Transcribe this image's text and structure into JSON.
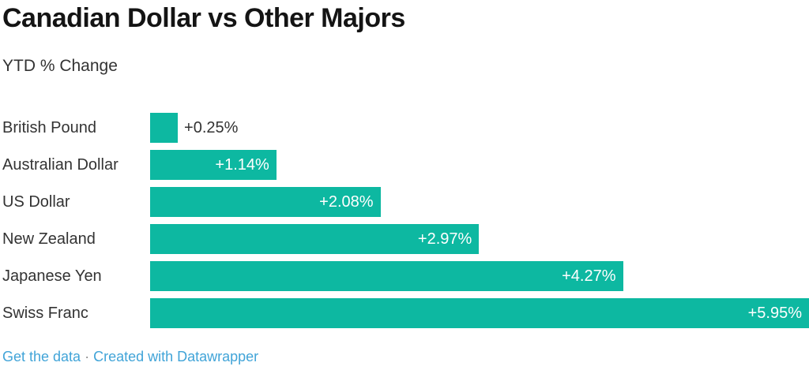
{
  "title": "Canadian Dollar vs Other Majors",
  "subtitle": "YTD % Change",
  "footer": {
    "get_data_label": "Get the data",
    "separator": "·",
    "credit_label": "Created with Datawrapper"
  },
  "colors": {
    "bar": "#0db8a1",
    "title": "#141414",
    "text": "#333333",
    "value_inside": "#ffffff",
    "link": "#41a4d8",
    "separator": "#8e8e8e",
    "background": "#ffffff"
  },
  "chart_data": {
    "type": "bar",
    "orientation": "horizontal",
    "title": "Canadian Dollar vs Other Majors",
    "subtitle": "YTD % Change",
    "categories": [
      "British Pound",
      "Australian Dollar",
      "US Dollar",
      "New Zealand",
      "Japanese Yen",
      "Swiss Franc"
    ],
    "values": [
      0.25,
      1.14,
      2.08,
      2.97,
      4.27,
      5.95
    ],
    "value_labels": [
      "+0.25%",
      "+1.14%",
      "+2.08%",
      "+2.97%",
      "+4.27%",
      "+5.95%"
    ],
    "xlim": [
      0,
      5.95
    ],
    "grid": false,
    "legend": false,
    "value_label_position": "inside-end, outside-end when bar too short"
  }
}
